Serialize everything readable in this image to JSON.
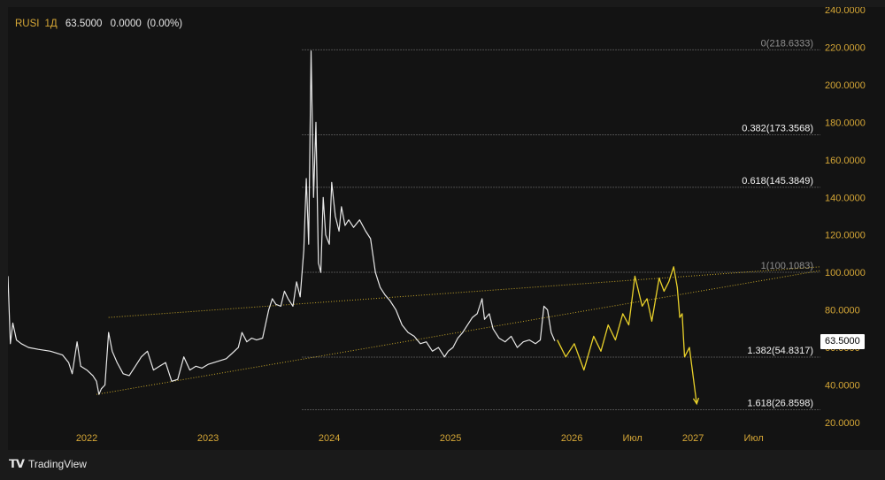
{
  "header": {
    "symbol": "RUSI",
    "interval": "1Д",
    "price": "63.5000",
    "change": "0.0000",
    "change_pct": "(0.00%)"
  },
  "last_price_tag": "63.5000",
  "branding": {
    "name": "TradingView",
    "logo_icon": "tradingview-logo-icon"
  },
  "colors": {
    "background": "#131313",
    "price_line": "#e8e8e8",
    "projection": "#e9d12a",
    "trendline": "#c8a82a",
    "fib_line": "#8a8a8a",
    "axis_text": "#d6a736"
  },
  "chart_data": {
    "type": "line",
    "ylim": [
      20,
      240
    ],
    "y_ticks": [
      "240.0000",
      "220.0000",
      "200.0000",
      "180.0000",
      "160.0000",
      "140.0000",
      "120.0000",
      "100.0000",
      "80.0000",
      "60.0000",
      "40.0000",
      "20.0000"
    ],
    "y_tick_values": [
      240,
      220,
      200,
      180,
      160,
      140,
      120,
      100,
      80,
      60,
      40,
      20
    ],
    "x_ticks": [
      {
        "label": "2022",
        "t": 2022.0
      },
      {
        "label": "2023",
        "t": 2023.0
      },
      {
        "label": "2024",
        "t": 2024.0
      },
      {
        "label": "2025",
        "t": 2025.0
      },
      {
        "label": "2026",
        "t": 2026.0
      },
      {
        "label": "Июл",
        "t": 2026.5
      },
      {
        "label": "2027",
        "t": 2027.0
      },
      {
        "label": "Июл",
        "t": 2027.5
      }
    ],
    "xlim": [
      2021.35,
      2028.05
    ],
    "series": [
      {
        "values": [
          [
            2021.35,
            98
          ],
          [
            2021.37,
            62
          ],
          [
            2021.39,
            73
          ],
          [
            2021.42,
            64
          ],
          [
            2021.46,
            62
          ],
          [
            2021.52,
            60
          ],
          [
            2021.6,
            59
          ],
          [
            2021.7,
            58
          ],
          [
            2021.8,
            56
          ],
          [
            2021.85,
            52
          ],
          [
            2021.88,
            46
          ],
          [
            2021.92,
            63
          ],
          [
            2021.95,
            50
          ],
          [
            2022.0,
            48
          ],
          [
            2022.05,
            45
          ],
          [
            2022.08,
            42
          ],
          [
            2022.1,
            35
          ],
          [
            2022.12,
            38
          ],
          [
            2022.15,
            40
          ],
          [
            2022.18,
            68
          ],
          [
            2022.21,
            58
          ],
          [
            2022.25,
            52
          ],
          [
            2022.3,
            46
          ],
          [
            2022.35,
            45
          ],
          [
            2022.4,
            50
          ],
          [
            2022.45,
            55
          ],
          [
            2022.5,
            58
          ],
          [
            2022.55,
            48
          ],
          [
            2022.6,
            50
          ],
          [
            2022.65,
            52
          ],
          [
            2022.7,
            42
          ],
          [
            2022.75,
            43
          ],
          [
            2022.8,
            55
          ],
          [
            2022.85,
            48
          ],
          [
            2022.9,
            50
          ],
          [
            2022.95,
            49
          ],
          [
            2023.0,
            51
          ],
          [
            2023.05,
            52
          ],
          [
            2023.1,
            53
          ],
          [
            2023.15,
            54
          ],
          [
            2023.2,
            57
          ],
          [
            2023.25,
            60
          ],
          [
            2023.28,
            68
          ],
          [
            2023.32,
            63
          ],
          [
            2023.36,
            65
          ],
          [
            2023.4,
            64
          ],
          [
            2023.45,
            65
          ],
          [
            2023.5,
            80
          ],
          [
            2023.53,
            86
          ],
          [
            2023.56,
            83
          ],
          [
            2023.6,
            82
          ],
          [
            2023.63,
            90
          ],
          [
            2023.66,
            86
          ],
          [
            2023.7,
            82
          ],
          [
            2023.73,
            95
          ],
          [
            2023.76,
            87
          ],
          [
            2023.79,
            112
          ],
          [
            2023.81,
            150
          ],
          [
            2023.83,
            115
          ],
          [
            2023.85,
            218
          ],
          [
            2023.87,
            140
          ],
          [
            2023.89,
            180
          ],
          [
            2023.91,
            105
          ],
          [
            2023.93,
            100
          ],
          [
            2023.95,
            140
          ],
          [
            2023.97,
            120
          ],
          [
            2024.0,
            115
          ],
          [
            2024.02,
            148
          ],
          [
            2024.05,
            130
          ],
          [
            2024.08,
            122
          ],
          [
            2024.1,
            135
          ],
          [
            2024.13,
            125
          ],
          [
            2024.16,
            128
          ],
          [
            2024.2,
            124
          ],
          [
            2024.25,
            128
          ],
          [
            2024.3,
            122
          ],
          [
            2024.34,
            118
          ],
          [
            2024.38,
            100
          ],
          [
            2024.42,
            92
          ],
          [
            2024.46,
            88
          ],
          [
            2024.5,
            85
          ],
          [
            2024.55,
            80
          ],
          [
            2024.6,
            72
          ],
          [
            2024.65,
            68
          ],
          [
            2024.7,
            66
          ],
          [
            2024.75,
            62
          ],
          [
            2024.8,
            63
          ],
          [
            2024.85,
            58
          ],
          [
            2024.9,
            60
          ],
          [
            2024.95,
            55
          ],
          [
            2024.98,
            58
          ],
          [
            2025.02,
            60
          ],
          [
            2025.06,
            65
          ],
          [
            2025.1,
            68
          ],
          [
            2025.14,
            72
          ],
          [
            2025.18,
            76
          ],
          [
            2025.22,
            78
          ],
          [
            2025.26,
            86
          ],
          [
            2025.28,
            75
          ],
          [
            2025.32,
            78
          ],
          [
            2025.35,
            70
          ],
          [
            2025.4,
            65
          ],
          [
            2025.45,
            63
          ],
          [
            2025.5,
            66
          ],
          [
            2025.55,
            60
          ],
          [
            2025.6,
            63
          ],
          [
            2025.65,
            64
          ],
          [
            2025.7,
            62
          ],
          [
            2025.74,
            64
          ],
          [
            2025.77,
            82
          ],
          [
            2025.8,
            80
          ],
          [
            2025.83,
            68
          ],
          [
            2025.86,
            63.5
          ]
        ]
      },
      {
        "values": [
          [
            2025.88,
            64
          ],
          [
            2025.95,
            55
          ],
          [
            2026.02,
            62
          ],
          [
            2026.1,
            48
          ],
          [
            2026.18,
            66
          ],
          [
            2026.24,
            58
          ],
          [
            2026.3,
            72
          ],
          [
            2026.36,
            64
          ],
          [
            2026.42,
            78
          ],
          [
            2026.47,
            72
          ],
          [
            2026.52,
            98
          ],
          [
            2026.58,
            82
          ],
          [
            2026.62,
            86
          ],
          [
            2026.66,
            74
          ],
          [
            2026.72,
            97
          ],
          [
            2026.76,
            90
          ],
          [
            2026.8,
            95
          ],
          [
            2026.84,
            103
          ],
          [
            2026.87,
            92
          ],
          [
            2026.89,
            76
          ],
          [
            2026.91,
            78
          ],
          [
            2026.93,
            55
          ],
          [
            2026.97,
            60
          ],
          [
            2027.03,
            30
          ]
        ]
      }
    ],
    "trendlines": [
      {
        "from": [
          2022.08,
          35
        ],
        "to": [
          2028.05,
          101
        ]
      },
      {
        "from": [
          2022.18,
          76
        ],
        "to": [
          2028.05,
          103
        ]
      }
    ],
    "fib_levels": [
      {
        "label": "0(218.6333)",
        "value": 218.6333
      },
      {
        "label": "0.382(173.3568)",
        "value": 173.3568
      },
      {
        "label": "0.618(145.3849)",
        "value": 145.3849
      },
      {
        "label": "1(100.1083)",
        "value": 100.1083
      },
      {
        "label": "1.382(54.8317)",
        "value": 54.8317
      },
      {
        "label": "1.618(26.8598)",
        "value": 26.8598
      }
    ],
    "fib_start_x": 2023.85
  }
}
